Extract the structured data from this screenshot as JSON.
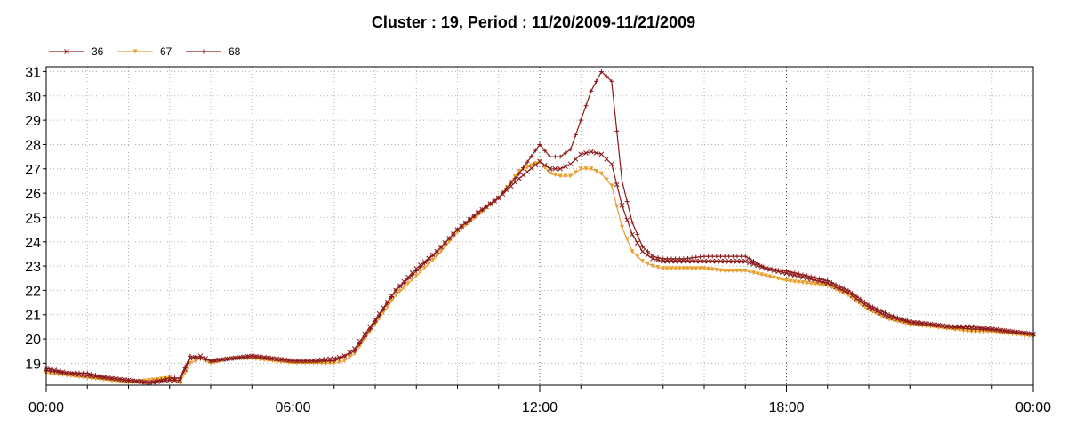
{
  "chart_data": {
    "type": "line",
    "title": "Cluster : 19, Period : 11/20/2009-11/21/2009",
    "xlabel": "",
    "ylabel": "",
    "x_tick_labels": [
      "00:00",
      "06:00",
      "12:00",
      "18:00",
      "00:00"
    ],
    "x_ticks_hours": [
      0,
      6,
      12,
      18,
      24
    ],
    "xlim_hours": [
      0,
      24
    ],
    "ylim": [
      18.1,
      31.2
    ],
    "y_ticks": [
      19,
      20,
      21,
      22,
      23,
      24,
      25,
      26,
      27,
      28,
      29,
      30,
      31
    ],
    "grid": "dotted",
    "legend_position": "top-left",
    "x": [
      0,
      0.5,
      1,
      1.5,
      2,
      2.5,
      3,
      3.25,
      3.5,
      3.75,
      4,
      4.5,
      5,
      5.5,
      6,
      6.5,
      7,
      7.25,
      7.5,
      7.75,
      8,
      8.5,
      9,
      9.5,
      10,
      10.5,
      11,
      11.5,
      12,
      12.25,
      12.5,
      12.75,
      13,
      13.25,
      13.5,
      13.75,
      14,
      14.25,
      14.5,
      14.75,
      15,
      15.5,
      16,
      16.5,
      17,
      17.5,
      18,
      18.5,
      19,
      19.5,
      20,
      20.5,
      21,
      21.5,
      22,
      22.5,
      23,
      23.5,
      24
    ],
    "series": [
      {
        "name": "36",
        "color": "#8b1a1a",
        "marker": "x",
        "values": [
          18.8,
          18.6,
          18.5,
          18.4,
          18.3,
          18.2,
          18.3,
          18.3,
          19.2,
          19.3,
          19.1,
          19.2,
          19.3,
          19.2,
          19.1,
          19.1,
          19.2,
          19.3,
          19.6,
          20.2,
          20.8,
          22.0,
          22.9,
          23.6,
          24.5,
          25.2,
          25.8,
          26.6,
          27.3,
          27.0,
          27.0,
          27.2,
          27.6,
          27.7,
          27.6,
          27.2,
          25.5,
          24.3,
          23.6,
          23.3,
          23.2,
          23.2,
          23.2,
          23.2,
          23.2,
          22.9,
          22.7,
          22.5,
          22.3,
          21.9,
          21.3,
          20.9,
          20.7,
          20.6,
          20.5,
          20.5,
          20.4,
          20.3,
          20.2
        ]
      },
      {
        "name": "67",
        "color": "#e8a030",
        "marker": "triangle-down",
        "values": [
          18.6,
          18.5,
          18.4,
          18.3,
          18.2,
          18.3,
          18.4,
          18.2,
          19.0,
          19.2,
          19.0,
          19.2,
          19.2,
          19.1,
          19.0,
          19.0,
          19.0,
          19.1,
          19.4,
          20.0,
          20.6,
          21.8,
          22.6,
          23.4,
          24.4,
          25.1,
          25.8,
          26.9,
          27.3,
          26.8,
          26.7,
          26.7,
          27.0,
          27.0,
          26.8,
          26.3,
          24.6,
          23.6,
          23.2,
          23.0,
          22.9,
          22.9,
          22.9,
          22.8,
          22.8,
          22.6,
          22.4,
          22.3,
          22.2,
          21.8,
          21.2,
          20.8,
          20.6,
          20.5,
          20.4,
          20.3,
          20.3,
          20.2,
          20.1
        ]
      },
      {
        "name": "68",
        "color": "#8b1a1a",
        "marker": "plus",
        "values": [
          18.7,
          18.6,
          18.6,
          18.4,
          18.3,
          18.2,
          18.4,
          18.4,
          19.3,
          19.2,
          19.1,
          19.2,
          19.3,
          19.2,
          19.1,
          19.1,
          19.1,
          19.3,
          19.5,
          20.1,
          20.7,
          22.0,
          22.8,
          23.6,
          24.5,
          25.2,
          25.8,
          26.8,
          28.0,
          27.5,
          27.5,
          27.8,
          29.0,
          30.2,
          31.0,
          30.6,
          26.5,
          24.8,
          23.8,
          23.4,
          23.3,
          23.3,
          23.4,
          23.4,
          23.4,
          22.9,
          22.8,
          22.6,
          22.4,
          22.0,
          21.4,
          21.0,
          20.7,
          20.6,
          20.5,
          20.4,
          20.4,
          20.3,
          20.2
        ]
      }
    ]
  }
}
